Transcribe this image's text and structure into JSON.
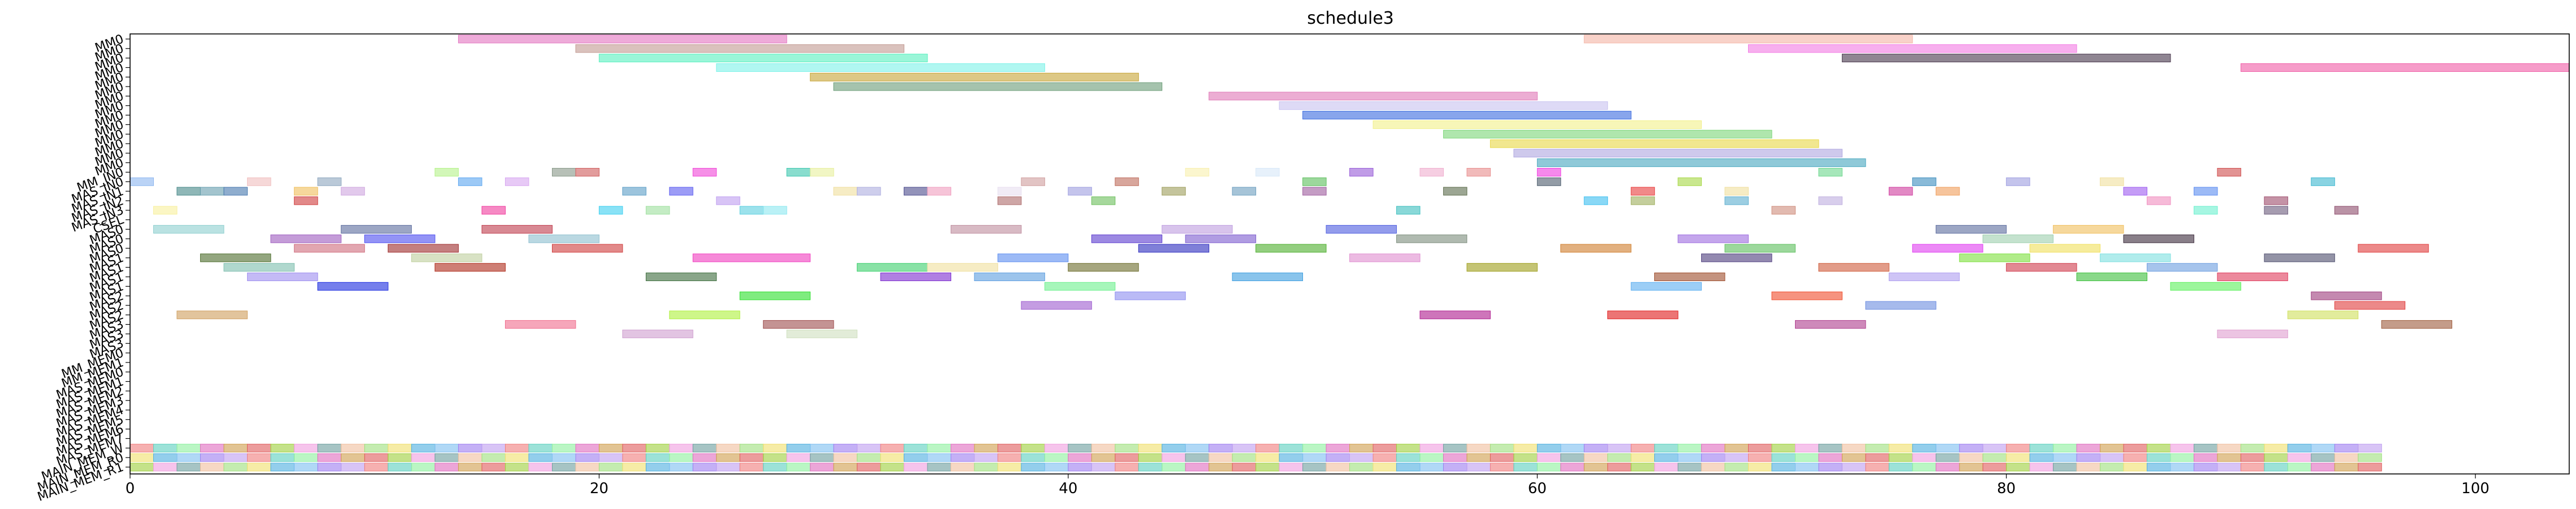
{
  "chart_data": {
    "type": "gantt",
    "title": "schedule3",
    "xlabel": "",
    "ylabel": "",
    "xlim": [
      0,
      104
    ],
    "xticks": [
      0,
      20,
      40,
      60,
      80,
      100
    ],
    "rows": [
      "MM0",
      "MM0",
      "MM0",
      "MM0",
      "MM0",
      "MM0",
      "MM0",
      "MM0",
      "MM0",
      "MM0",
      "MM0",
      "MM0",
      "MM0",
      "MM0",
      "MM_IN0",
      "MAS_IN0",
      "MAS_IN1",
      "MAS_IN2",
      "MAS_IN3",
      "CSEL",
      "MAS0",
      "MAS0",
      "MAS0",
      "MAS1",
      "MAS1",
      "MAS1",
      "MAS1",
      "MAS2",
      "MAS2",
      "MAS2",
      "MAS3",
      "MAS3",
      "MAS3",
      "MM_MEM0",
      "MM_MEM1",
      "MAS_MEM0",
      "MAS_MEM1",
      "MAS_MEM2",
      "MAS_MEM3",
      "MAS_MEM4",
      "MAS_MEM5",
      "MAS_MEM6",
      "MAS_MEM7",
      "MAIN_MEM_W",
      "MAIN_MEM_R0",
      "MAIN_MEM_R1"
    ],
    "tasks": [
      {
        "row": 0,
        "start": 14,
        "end": 28,
        "color": "#e377c2"
      },
      {
        "row": 0,
        "start": 62,
        "end": 76,
        "color": "#f4b6a8"
      },
      {
        "row": 1,
        "start": 19,
        "end": 33,
        "color": "#c49c94"
      },
      {
        "row": 1,
        "start": 69,
        "end": 83,
        "color": "#f27ee4"
      },
      {
        "row": 2,
        "start": 20,
        "end": 34,
        "color": "#5cf0c0"
      },
      {
        "row": 2,
        "start": 73,
        "end": 87,
        "color": "#4b3a4f"
      },
      {
        "row": 3,
        "start": 25,
        "end": 39,
        "color": "#7ff2e8"
      },
      {
        "row": 3,
        "start": 90,
        "end": 104,
        "color": "#f060a8"
      },
      {
        "row": 4,
        "start": 29,
        "end": 43,
        "color": "#c8a63a"
      },
      {
        "row": 5,
        "start": 30,
        "end": 44,
        "color": "#6e9e7a"
      },
      {
        "row": 6,
        "start": 46,
        "end": 60,
        "color": "#e07ab8"
      },
      {
        "row": 7,
        "start": 49,
        "end": 63,
        "color": "#c9c4f0"
      },
      {
        "row": 8,
        "start": 50,
        "end": 64,
        "color": "#3f6ee0"
      },
      {
        "row": 9,
        "start": 53,
        "end": 67,
        "color": "#f2f08c"
      },
      {
        "row": 10,
        "start": 56,
        "end": 70,
        "color": "#7ed67a"
      },
      {
        "row": 11,
        "start": 58,
        "end": 72,
        "color": "#e8d84a"
      },
      {
        "row": 12,
        "start": 59,
        "end": 73,
        "color": "#b0a8e0"
      },
      {
        "row": 13,
        "start": 60,
        "end": 74,
        "color": "#4aa8c0"
      },
      {
        "row": 14,
        "start": 13,
        "end": 14,
        "color": "#b6f28c"
      },
      {
        "row": 14,
        "start": 18,
        "end": 19,
        "color": "#8a9a8a"
      },
      {
        "row": 14,
        "start": 19,
        "end": 20,
        "color": "#d06060"
      },
      {
        "row": 14,
        "start": 24,
        "end": 25,
        "color": "#f04ad8"
      },
      {
        "row": 14,
        "start": 28,
        "end": 29,
        "color": "#40c8b0"
      },
      {
        "row": 14,
        "start": 29,
        "end": 30,
        "color": "#e8f0a0"
      },
      {
        "row": 14,
        "start": 45,
        "end": 46,
        "color": "#f8f0b0"
      },
      {
        "row": 14,
        "start": 48,
        "end": 49,
        "color": "#d8e8f8"
      },
      {
        "row": 14,
        "start": 52,
        "end": 53,
        "color": "#9a60d8"
      },
      {
        "row": 14,
        "start": 55,
        "end": 56,
        "color": "#f0b0d0"
      },
      {
        "row": 14,
        "start": 57,
        "end": 58,
        "color": "#e89090"
      },
      {
        "row": 14,
        "start": 60,
        "end": 61,
        "color": "#f040e0"
      },
      {
        "row": 14,
        "start": 72,
        "end": 73,
        "color": "#70d890"
      },
      {
        "row": 14,
        "start": 89,
        "end": 90,
        "color": "#d05050"
      },
      {
        "row": 15,
        "start": 0,
        "end": 1,
        "color": "#90b8f0"
      },
      {
        "row": 15,
        "start": 5,
        "end": 6,
        "color": "#f0c0c0"
      },
      {
        "row": 15,
        "start": 8,
        "end": 9,
        "color": "#90a8c0"
      },
      {
        "row": 15,
        "start": 14,
        "end": 15,
        "color": "#60a8f0"
      },
      {
        "row": 15,
        "start": 16,
        "end": 17,
        "color": "#d8a8f0"
      },
      {
        "row": 15,
        "start": 38,
        "end": 39,
        "color": "#d0a0a0"
      },
      {
        "row": 15,
        "start": 42,
        "end": 43,
        "color": "#c07060"
      },
      {
        "row": 15,
        "start": 50,
        "end": 51,
        "color": "#60c060"
      },
      {
        "row": 15,
        "start": 60,
        "end": 61,
        "color": "#506070"
      },
      {
        "row": 15,
        "start": 66,
        "end": 67,
        "color": "#a8d848"
      },
      {
        "row": 15,
        "start": 76,
        "end": 77,
        "color": "#4090c0"
      },
      {
        "row": 15,
        "start": 80,
        "end": 81,
        "color": "#a0a0e0"
      },
      {
        "row": 15,
        "start": 84,
        "end": 85,
        "color": "#f0e0a0"
      },
      {
        "row": 15,
        "start": 93,
        "end": 94,
        "color": "#40b8d0"
      },
      {
        "row": 16,
        "start": 2,
        "end": 3,
        "color": "#4a8a8a"
      },
      {
        "row": 16,
        "start": 3,
        "end": 4,
        "color": "#6aa0b0"
      },
      {
        "row": 16,
        "start": 4,
        "end": 5,
        "color": "#4a7ab0"
      },
      {
        "row": 16,
        "start": 7,
        "end": 8,
        "color": "#f0c060"
      },
      {
        "row": 16,
        "start": 9,
        "end": 10,
        "color": "#d0a8e0"
      },
      {
        "row": 16,
        "start": 21,
        "end": 22,
        "color": "#60a0c8"
      },
      {
        "row": 16,
        "start": 23,
        "end": 24,
        "color": "#6060f0"
      },
      {
        "row": 16,
        "start": 30,
        "end": 31,
        "color": "#f0e0a0"
      },
      {
        "row": 16,
        "start": 31,
        "end": 32,
        "color": "#b0b0e0"
      },
      {
        "row": 16,
        "start": 33,
        "end": 34,
        "color": "#505090"
      },
      {
        "row": 16,
        "start": 34,
        "end": 35,
        "color": "#f0a0c0"
      },
      {
        "row": 16,
        "start": 37,
        "end": 38,
        "color": "#e8e0f0"
      },
      {
        "row": 16,
        "start": 40,
        "end": 41,
        "color": "#a0a0e0"
      },
      {
        "row": 16,
        "start": 44,
        "end": 45,
        "color": "#a0a060"
      },
      {
        "row": 16,
        "start": 47,
        "end": 48,
        "color": "#70a0c0"
      },
      {
        "row": 16,
        "start": 50,
        "end": 51,
        "color": "#a060a0"
      },
      {
        "row": 16,
        "start": 56,
        "end": 57,
        "color": "#607050"
      },
      {
        "row": 16,
        "start": 64,
        "end": 65,
        "color": "#e84040"
      },
      {
        "row": 16,
        "start": 68,
        "end": 69,
        "color": "#f0e0a0"
      },
      {
        "row": 16,
        "start": 75,
        "end": 76,
        "color": "#d040a0"
      },
      {
        "row": 16,
        "start": 77,
        "end": 78,
        "color": "#f0a060"
      },
      {
        "row": 16,
        "start": 85,
        "end": 86,
        "color": "#a060f0"
      },
      {
        "row": 16,
        "start": 88,
        "end": 89,
        "color": "#6090f0"
      },
      {
        "row": 17,
        "start": 7,
        "end": 8,
        "color": "#d04040"
      },
      {
        "row": 17,
        "start": 25,
        "end": 26,
        "color": "#c0a0f0"
      },
      {
        "row": 17,
        "start": 37,
        "end": 38,
        "color": "#b07070"
      },
      {
        "row": 17,
        "start": 41,
        "end": 42,
        "color": "#70c060"
      },
      {
        "row": 17,
        "start": 62,
        "end": 63,
        "color": "#40c0f0"
      },
      {
        "row": 17,
        "start": 64,
        "end": 65,
        "color": "#a0b060"
      },
      {
        "row": 17,
        "start": 68,
        "end": 69,
        "color": "#60b0d0"
      },
      {
        "row": 17,
        "start": 72,
        "end": 73,
        "color": "#c0b0e0"
      },
      {
        "row": 17,
        "start": 86,
        "end": 87,
        "color": "#f090c0"
      },
      {
        "row": 17,
        "start": 91,
        "end": 92,
        "color": "#a05070"
      },
      {
        "row": 18,
        "start": 1,
        "end": 2,
        "color": "#f8f0a0"
      },
      {
        "row": 18,
        "start": 15,
        "end": 16,
        "color": "#f040a0"
      },
      {
        "row": 18,
        "start": 20,
        "end": 21,
        "color": "#40d0f0"
      },
      {
        "row": 18,
        "start": 22,
        "end": 23,
        "color": "#a0e0a0"
      },
      {
        "row": 18,
        "start": 26,
        "end": 27,
        "color": "#60d0e0"
      },
      {
        "row": 18,
        "start": 27,
        "end": 28,
        "color": "#90e8f0"
      },
      {
        "row": 18,
        "start": 54,
        "end": 55,
        "color": "#40c0c0"
      },
      {
        "row": 18,
        "start": 70,
        "end": 71,
        "color": "#d09080"
      },
      {
        "row": 18,
        "start": 88,
        "end": 89,
        "color": "#70f0d0"
      },
      {
        "row": 18,
        "start": 91,
        "end": 92,
        "color": "#706080"
      },
      {
        "row": 18,
        "start": 94,
        "end": 95,
        "color": "#905070"
      },
      {
        "row": 20,
        "start": 1,
        "end": 4,
        "color": "#90d0d0"
      },
      {
        "row": 20,
        "start": 9,
        "end": 12,
        "color": "#6070a0"
      },
      {
        "row": 20,
        "start": 15,
        "end": 18,
        "color": "#c04050"
      },
      {
        "row": 20,
        "start": 35,
        "end": 38,
        "color": "#c090a0"
      },
      {
        "row": 20,
        "start": 44,
        "end": 47,
        "color": "#c0a0e0"
      },
      {
        "row": 20,
        "start": 51,
        "end": 54,
        "color": "#5060e0"
      },
      {
        "row": 20,
        "start": 77,
        "end": 80,
        "color": "#6070a0"
      },
      {
        "row": 20,
        "start": 82,
        "end": 85,
        "color": "#f0c060"
      },
      {
        "row": 21,
        "start": 6,
        "end": 9,
        "color": "#a060c0"
      },
      {
        "row": 21,
        "start": 10,
        "end": 13,
        "color": "#5050f0"
      },
      {
        "row": 21,
        "start": 17,
        "end": 20,
        "color": "#90c0d0"
      },
      {
        "row": 21,
        "start": 41,
        "end": 44,
        "color": "#6040d0"
      },
      {
        "row": 21,
        "start": 45,
        "end": 48,
        "color": "#8060d0"
      },
      {
        "row": 21,
        "start": 54,
        "end": 57,
        "color": "#809080"
      },
      {
        "row": 21,
        "start": 66,
        "end": 69,
        "color": "#a070e0"
      },
      {
        "row": 21,
        "start": 79,
        "end": 82,
        "color": "#a0d0b0"
      },
      {
        "row": 21,
        "start": 85,
        "end": 88,
        "color": "#403040"
      },
      {
        "row": 22,
        "start": 7,
        "end": 10,
        "color": "#d07080"
      },
      {
        "row": 22,
        "start": 11,
        "end": 14,
        "color": "#a03030"
      },
      {
        "row": 22,
        "start": 18,
        "end": 21,
        "color": "#d04040"
      },
      {
        "row": 22,
        "start": 43,
        "end": 46,
        "color": "#3030c0"
      },
      {
        "row": 22,
        "start": 48,
        "end": 51,
        "color": "#50b030"
      },
      {
        "row": 22,
        "start": 61,
        "end": 64,
        "color": "#d08030"
      },
      {
        "row": 22,
        "start": 68,
        "end": 71,
        "color": "#60c060"
      },
      {
        "row": 22,
        "start": 76,
        "end": 79,
        "color": "#e040f0"
      },
      {
        "row": 22,
        "start": 81,
        "end": 84,
        "color": "#f0e060"
      },
      {
        "row": 22,
        "start": 95,
        "end": 98,
        "color": "#e04040"
      },
      {
        "row": 23,
        "start": 3,
        "end": 6,
        "color": "#507030"
      },
      {
        "row": 23,
        "start": 12,
        "end": 15,
        "color": "#c0d0a0"
      },
      {
        "row": 23,
        "start": 24,
        "end": 29,
        "color": "#f040c0"
      },
      {
        "row": 23,
        "start": 37,
        "end": 40,
        "color": "#6090f0"
      },
      {
        "row": 23,
        "start": 52,
        "end": 55,
        "color": "#e090d0"
      },
      {
        "row": 23,
        "start": 67,
        "end": 70,
        "color": "#504080"
      },
      {
        "row": 23,
        "start": 78,
        "end": 81,
        "color": "#80e040"
      },
      {
        "row": 23,
        "start": 84,
        "end": 87,
        "color": "#80e0e0"
      },
      {
        "row": 23,
        "start": 91,
        "end": 94,
        "color": "#505070"
      },
      {
        "row": 24,
        "start": 4,
        "end": 7,
        "color": "#80c0b0"
      },
      {
        "row": 24,
        "start": 13,
        "end": 16,
        "color": "#b03020"
      },
      {
        "row": 24,
        "start": 31,
        "end": 34,
        "color": "#40d070"
      },
      {
        "row": 24,
        "start": 34,
        "end": 37,
        "color": "#f0e0a0"
      },
      {
        "row": 24,
        "start": 40,
        "end": 43,
        "color": "#707030"
      },
      {
        "row": 24,
        "start": 57,
        "end": 60,
        "color": "#a0a020"
      },
      {
        "row": 24,
        "start": 72,
        "end": 75,
        "color": "#d06040"
      },
      {
        "row": 24,
        "start": 80,
        "end": 83,
        "color": "#d04050"
      },
      {
        "row": 24,
        "start": 86,
        "end": 89,
        "color": "#70a0e0"
      },
      {
        "row": 25,
        "start": 5,
        "end": 8,
        "color": "#a090f0"
      },
      {
        "row": 25,
        "start": 22,
        "end": 25,
        "color": "#407040"
      },
      {
        "row": 25,
        "start": 32,
        "end": 35,
        "color": "#8030d0"
      },
      {
        "row": 25,
        "start": 36,
        "end": 39,
        "color": "#60a0e0"
      },
      {
        "row": 25,
        "start": 47,
        "end": 50,
        "color": "#40a0e0"
      },
      {
        "row": 25,
        "start": 65,
        "end": 68,
        "color": "#a05030"
      },
      {
        "row": 25,
        "start": 75,
        "end": 78,
        "color": "#b0a0f0"
      },
      {
        "row": 25,
        "start": 83,
        "end": 86,
        "color": "#40c040"
      },
      {
        "row": 25,
        "start": 89,
        "end": 92,
        "color": "#e04060"
      },
      {
        "row": 26,
        "start": 8,
        "end": 11,
        "color": "#2030e0"
      },
      {
        "row": 26,
        "start": 39,
        "end": 42,
        "color": "#70f090"
      },
      {
        "row": 26,
        "start": 64,
        "end": 67,
        "color": "#60b0f0"
      },
      {
        "row": 26,
        "start": 87,
        "end": 90,
        "color": "#60f060"
      },
      {
        "row": 27,
        "start": 26,
        "end": 29,
        "color": "#30e030"
      },
      {
        "row": 27,
        "start": 42,
        "end": 45,
        "color": "#9090f0"
      },
      {
        "row": 27,
        "start": 70,
        "end": 73,
        "color": "#f05030"
      },
      {
        "row": 27,
        "start": 93,
        "end": 96,
        "color": "#a04080"
      },
      {
        "row": 28,
        "start": 38,
        "end": 41,
        "color": "#a060d0"
      },
      {
        "row": 28,
        "start": 74,
        "end": 77,
        "color": "#7090e0"
      },
      {
        "row": 28,
        "start": 94,
        "end": 97,
        "color": "#e04040"
      },
      {
        "row": 29,
        "start": 2,
        "end": 5,
        "color": "#d0a060"
      },
      {
        "row": 29,
        "start": 23,
        "end": 26,
        "color": "#b0f040"
      },
      {
        "row": 29,
        "start": 55,
        "end": 58,
        "color": "#b02090"
      },
      {
        "row": 29,
        "start": 63,
        "end": 66,
        "color": "#e02020"
      },
      {
        "row": 29,
        "start": 92,
        "end": 95,
        "color": "#d0e060"
      },
      {
        "row": 30,
        "start": 16,
        "end": 19,
        "color": "#f07090"
      },
      {
        "row": 30,
        "start": 27,
        "end": 30,
        "color": "#a05050"
      },
      {
        "row": 30,
        "start": 71,
        "end": 74,
        "color": "#b04090"
      },
      {
        "row": 30,
        "start": 96,
        "end": 99,
        "color": "#a06040"
      },
      {
        "row": 31,
        "start": 21,
        "end": 24,
        "color": "#d0a0d0"
      },
      {
        "row": 31,
        "start": 28,
        "end": 31,
        "color": "#d0e0c0"
      },
      {
        "row": 31,
        "start": 89,
        "end": 92,
        "color": "#e0a0d0"
      }
    ]
  }
}
